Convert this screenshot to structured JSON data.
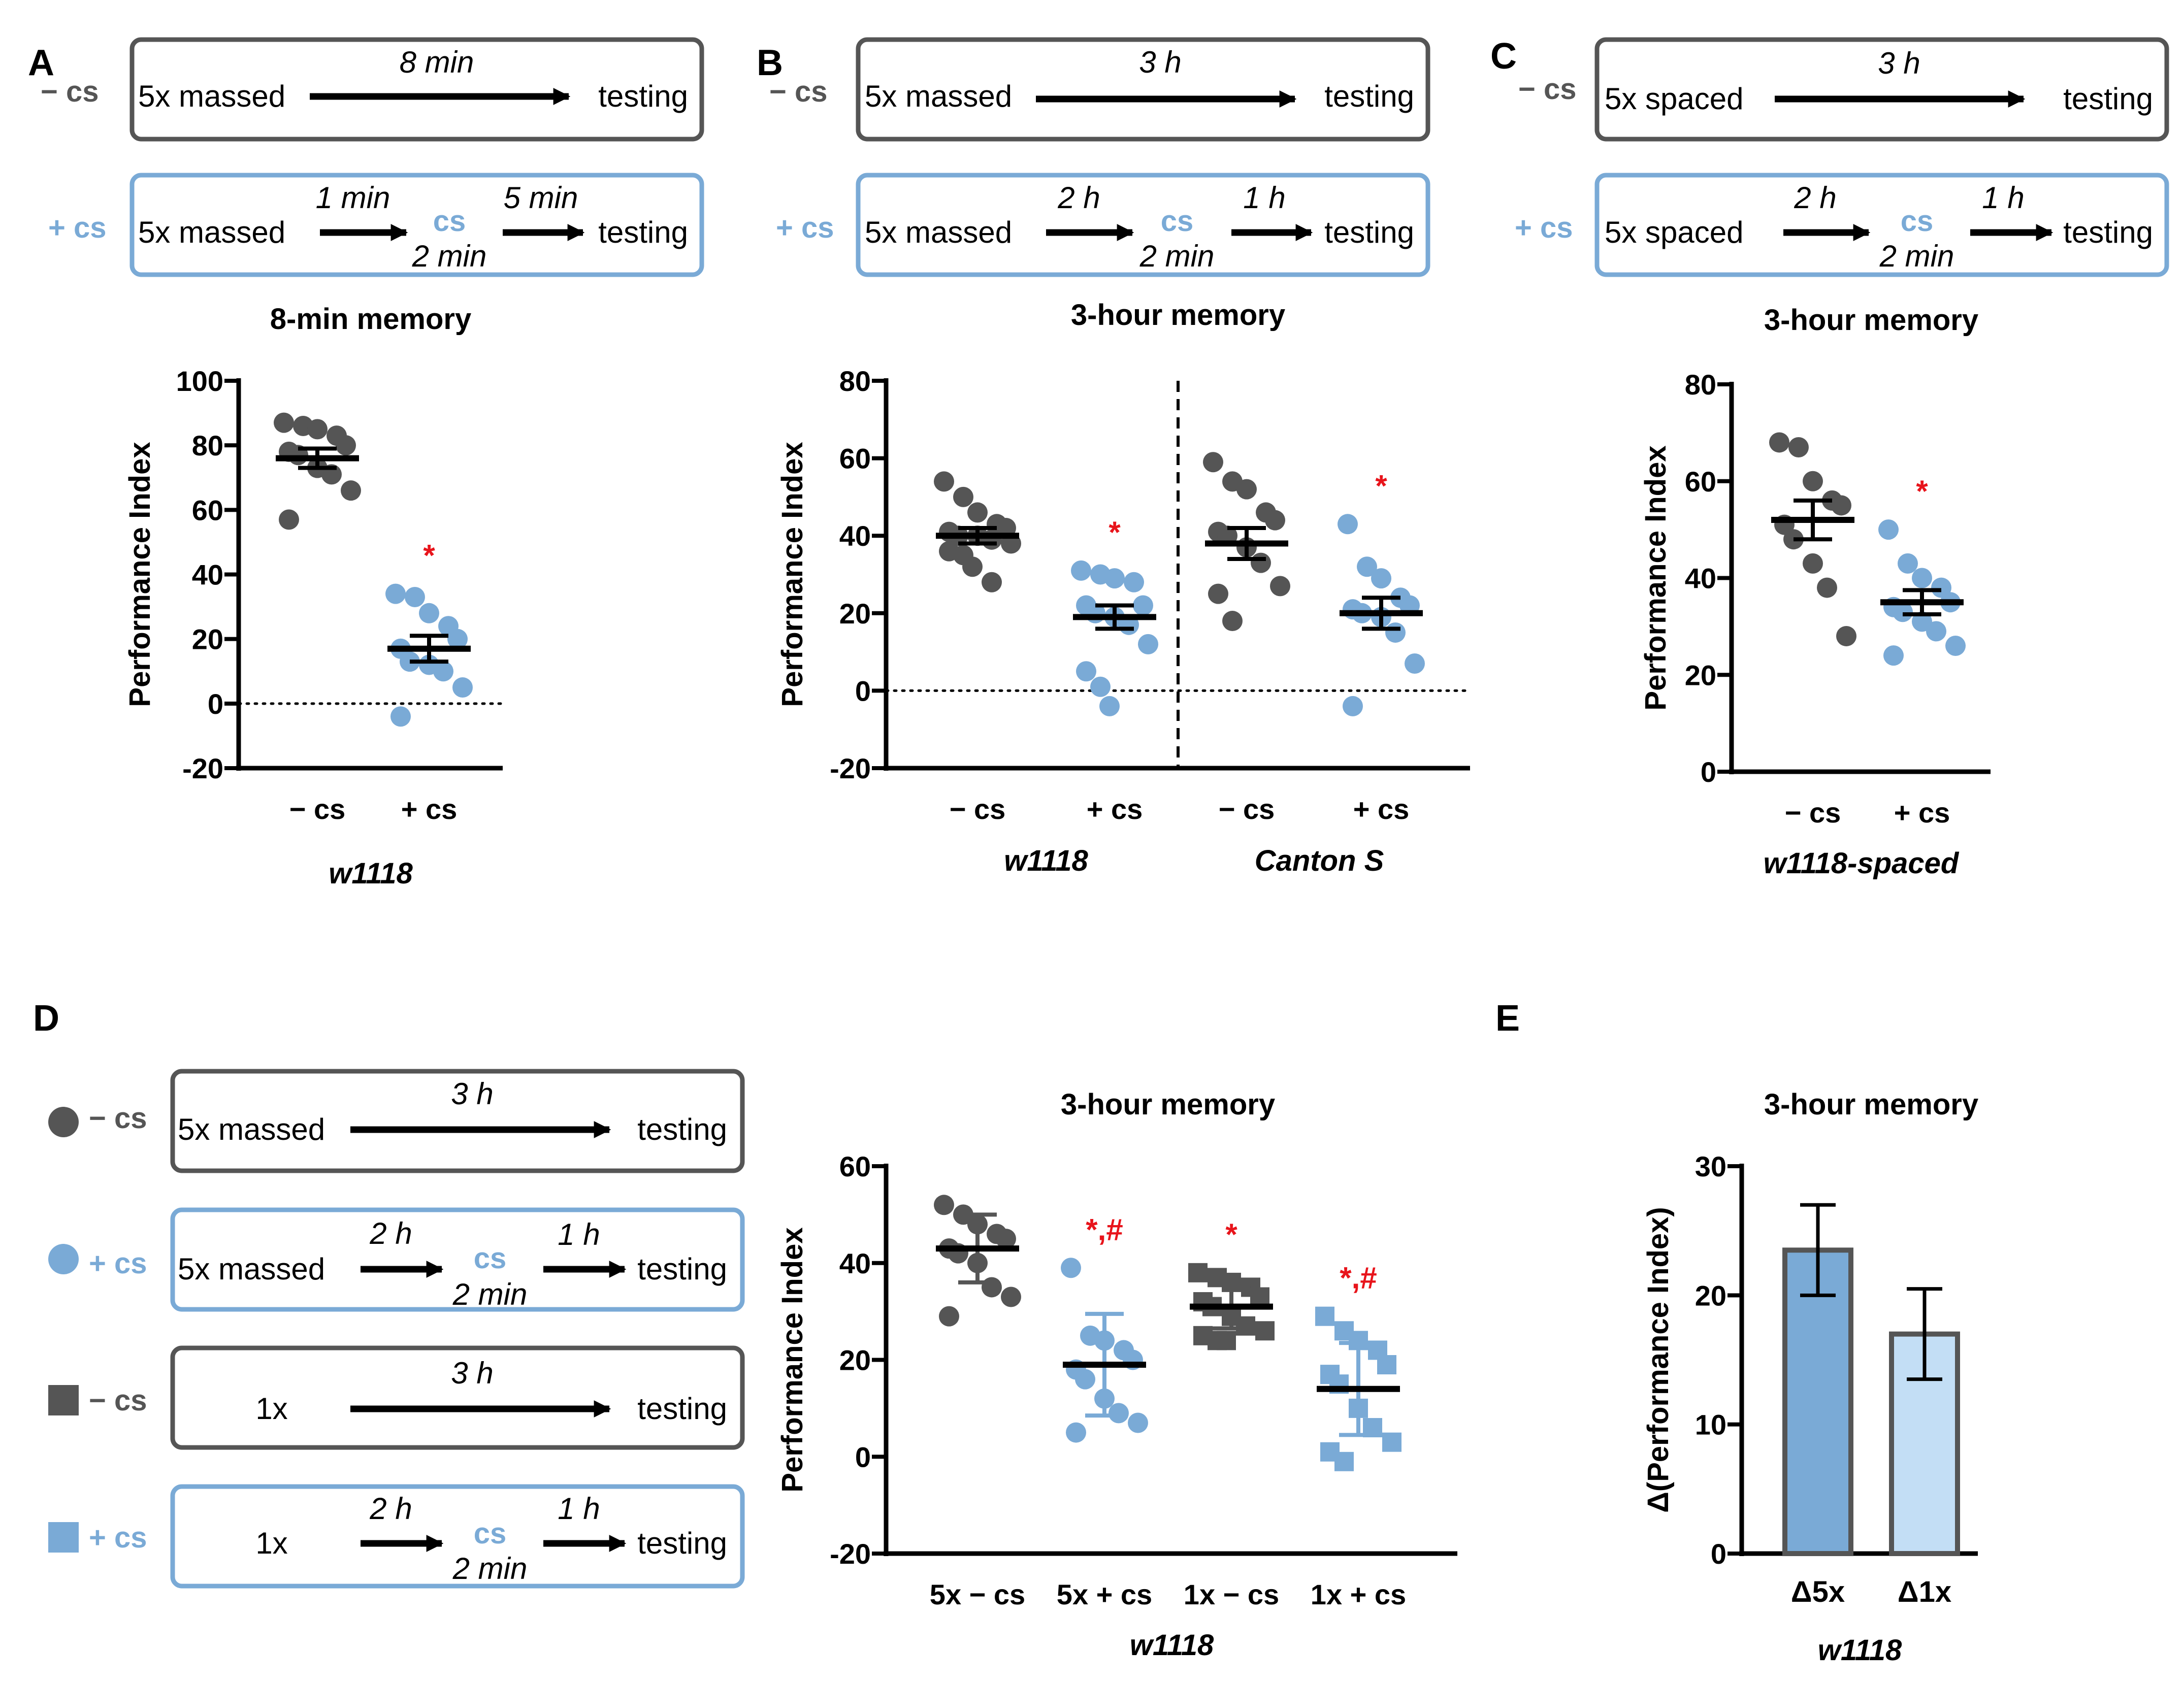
{
  "colors": {
    "dark": "#555555",
    "blue": "#7AAAD6",
    "light_blue": "#C3DEF5",
    "red": "#E8141B",
    "black": "#000000"
  },
  "legend": {
    "minus_cs": "− cs",
    "plus_cs": "+ cs"
  },
  "panels": {
    "A": {
      "letter": "A",
      "protocol_minus": {
        "training": "5x massed",
        "time": "8 min",
        "end": "testing"
      },
      "protocol_plus": {
        "training": "5x massed",
        "t1": "1 min",
        "cs": "cs",
        "cs_time": "2 min",
        "t2": "5 min",
        "end": "testing"
      }
    },
    "B": {
      "letter": "B",
      "protocol_minus": {
        "training": "5x massed",
        "time": "3 h",
        "end": "testing"
      },
      "protocol_plus": {
        "training": "5x massed",
        "t1": "2 h",
        "cs": "cs",
        "cs_time": "2 min",
        "t2": "1 h",
        "end": "testing"
      }
    },
    "C": {
      "letter": "C",
      "protocol_minus": {
        "training": "5x spaced",
        "time": "3 h",
        "end": "testing"
      },
      "protocol_plus": {
        "training": "5x spaced",
        "t1": "2 h",
        "cs": "cs",
        "cs_time": "2 min",
        "t2": "1 h",
        "end": "testing"
      }
    },
    "D": {
      "letter": "D",
      "protocols": [
        {
          "legend": "− cs",
          "training": "5x massed",
          "time": "3 h",
          "end": "testing",
          "type": "minus"
        },
        {
          "legend": "+ cs",
          "training": "5x massed",
          "t1": "2 h",
          "cs": "cs",
          "cs_time": "2 min",
          "t2": "1 h",
          "end": "testing",
          "type": "plus"
        },
        {
          "legend": "− cs",
          "training": "1x",
          "time": "3 h",
          "end": "testing",
          "type": "minus"
        },
        {
          "legend": "+ cs",
          "training": "1x",
          "t1": "2 h",
          "cs": "cs",
          "cs_time": "2 min",
          "t2": "1 h",
          "end": "testing",
          "type": "plus"
        }
      ]
    },
    "E": {
      "letter": "E"
    }
  },
  "chart_data": [
    {
      "id": "A",
      "type": "scatter",
      "title": "8-min memory",
      "ylabel": "Performance Index",
      "xlabel": "w1118",
      "ylim": [
        -20,
        100
      ],
      "yticks": [
        -20,
        0,
        20,
        40,
        60,
        80,
        100
      ],
      "zero_line": true,
      "groups": [
        {
          "label": "− cs",
          "color": "#555555",
          "marker": "circle",
          "values": [
            87,
            86,
            85,
            83,
            80,
            78,
            77,
            73,
            71,
            66,
            57
          ],
          "mean": 76,
          "err": 3,
          "sig": ""
        },
        {
          "label": "+ cs",
          "color": "#7AAAD6",
          "marker": "circle",
          "values": [
            34,
            33,
            28,
            24,
            20,
            17,
            13,
            12,
            10,
            5,
            -4
          ],
          "mean": 17,
          "err": 4,
          "sig": "*"
        }
      ]
    },
    {
      "id": "B",
      "type": "scatter",
      "title": "3-hour memory",
      "ylabel": "Performance Index",
      "ylim": [
        -20,
        80
      ],
      "yticks": [
        -20,
        0,
        20,
        40,
        60,
        80
      ],
      "zero_line": true,
      "group_labels": [
        "w1118",
        "Canton S"
      ],
      "groups": [
        {
          "label": "− cs",
          "color": "#555555",
          "marker": "circle",
          "values": [
            54,
            50,
            46,
            43,
            42,
            41,
            40,
            40,
            39,
            38,
            36,
            35,
            32,
            28
          ],
          "mean": 40,
          "err": 2,
          "sig": ""
        },
        {
          "label": "+ cs",
          "color": "#7AAAD6",
          "marker": "circle",
          "values": [
            31,
            30,
            29,
            28,
            22,
            22,
            20,
            19,
            17,
            12,
            5,
            1,
            -4
          ],
          "mean": 19,
          "err": 3,
          "sig": "*"
        },
        {
          "label": "− cs",
          "color": "#555555",
          "marker": "circle",
          "values": [
            59,
            54,
            52,
            46,
            44,
            41,
            40,
            37,
            33,
            27,
            25,
            18
          ],
          "mean": 38,
          "err": 4,
          "sig": ""
        },
        {
          "label": "+ cs",
          "color": "#7AAAD6",
          "marker": "circle",
          "values": [
            43,
            32,
            29,
            24,
            22,
            21,
            20,
            19,
            15,
            7,
            -4
          ],
          "mean": 20,
          "err": 4,
          "sig": "*"
        }
      ]
    },
    {
      "id": "C",
      "type": "scatter",
      "title": "3-hour memory",
      "ylabel": "Performance Index",
      "xlabel": "w1118-spaced",
      "ylim": [
        0,
        80
      ],
      "yticks": [
        0,
        20,
        40,
        60,
        80
      ],
      "zero_line": false,
      "groups": [
        {
          "label": "− cs",
          "color": "#555555",
          "marker": "circle",
          "values": [
            68,
            67,
            60,
            56,
            55,
            51,
            48,
            43,
            38,
            28
          ],
          "mean": 52,
          "err": 4,
          "sig": ""
        },
        {
          "label": "+ cs",
          "color": "#7AAAD6",
          "marker": "circle",
          "values": [
            50,
            43,
            40,
            38,
            35,
            34,
            33,
            31,
            29,
            26,
            24
          ],
          "mean": 35,
          "err": 2.5,
          "sig": "*"
        }
      ]
    },
    {
      "id": "D",
      "type": "scatter",
      "title": "3-hour memory",
      "ylabel": "Performance Index",
      "xlabel": "w1118",
      "ylim": [
        -20,
        60
      ],
      "yticks": [
        -20,
        0,
        20,
        40,
        60
      ],
      "zero_line": false,
      "groups": [
        {
          "label": "5x − cs",
          "color": "#555555",
          "marker": "circle",
          "values": [
            52,
            50,
            48,
            46,
            45,
            43,
            42,
            40,
            35,
            33,
            29
          ],
          "mean": 43,
          "err": 7,
          "sig": ""
        },
        {
          "label": "5x + cs",
          "color": "#7AAAD6",
          "marker": "circle",
          "values": [
            39,
            25,
            24,
            22,
            20,
            18,
            16,
            12,
            9,
            7,
            5
          ],
          "mean": 19,
          "err": 10.5,
          "sig": "*,#"
        },
        {
          "label": "1x − cs",
          "color": "#555555",
          "marker": "square",
          "values": [
            38,
            37,
            36,
            35,
            33,
            32,
            31,
            29,
            27,
            26,
            25,
            24,
            24
          ],
          "mean": 31,
          "err": 4.5,
          "sig": "*"
        },
        {
          "label": "1x + cs",
          "color": "#7AAAD6",
          "marker": "square",
          "values": [
            29,
            26,
            24,
            22,
            19,
            17,
            15,
            10,
            6,
            3,
            1,
            -1
          ],
          "mean": 14,
          "err": 9.5,
          "sig": "*,#"
        }
      ]
    },
    {
      "id": "E",
      "type": "bar",
      "title": "3-hour memory",
      "ylabel": "Δ(Performance Index)",
      "xlabel": "w1118",
      "ylim": [
        0,
        30
      ],
      "yticks": [
        0,
        10,
        20,
        30
      ],
      "categories": [
        "Δ5x",
        "Δ1x"
      ],
      "values": [
        23.5,
        17
      ],
      "errors": [
        3.5,
        3.5
      ],
      "colors": [
        "#7AAAD6",
        "#C3DEF5"
      ]
    }
  ]
}
